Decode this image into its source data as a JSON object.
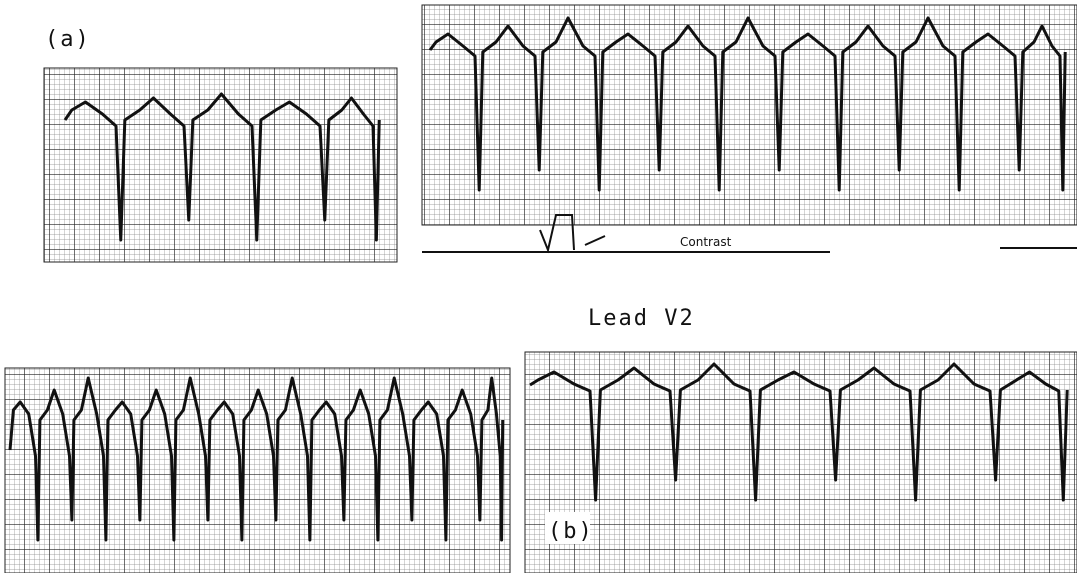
{
  "labels": {
    "panel_a": "(a)",
    "lead": "Lead V2",
    "panel_b": "(b)",
    "annotation": "Contrast"
  }
}
